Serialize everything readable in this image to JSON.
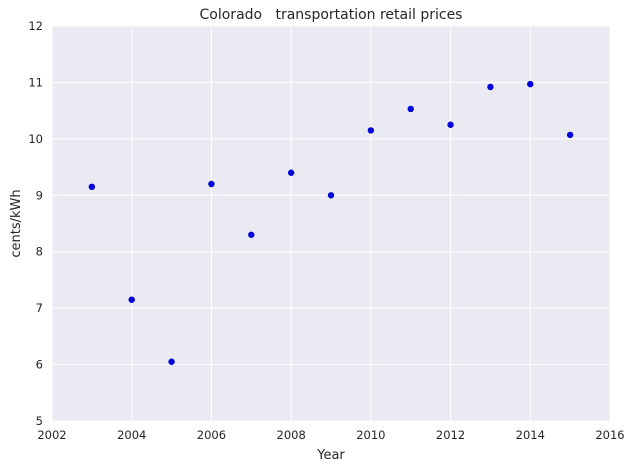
{
  "chart_data": {
    "type": "scatter",
    "title": "Colorado   transportation retail prices",
    "xlabel": "Year",
    "ylabel": "cents/kWh",
    "xlim": [
      2002,
      2016
    ],
    "ylim": [
      5,
      12
    ],
    "xticks": [
      2002,
      2004,
      2006,
      2008,
      2010,
      2012,
      2014,
      2016
    ],
    "yticks": [
      5,
      6,
      7,
      8,
      9,
      10,
      11,
      12
    ],
    "x": [
      2003,
      2004,
      2005,
      2006,
      2007,
      2008,
      2009,
      2010,
      2011,
      2012,
      2013,
      2014,
      2015
    ],
    "y": [
      9.15,
      7.15,
      6.05,
      9.2,
      8.3,
      9.4,
      9.0,
      10.15,
      10.53,
      10.25,
      10.92,
      10.97,
      10.07
    ],
    "grid": true,
    "legend": "none"
  },
  "style": {
    "background": "#eaeaf2",
    "grid_color": "#ffffff",
    "marker_color": "#0000dd",
    "text_color": "#262626"
  }
}
